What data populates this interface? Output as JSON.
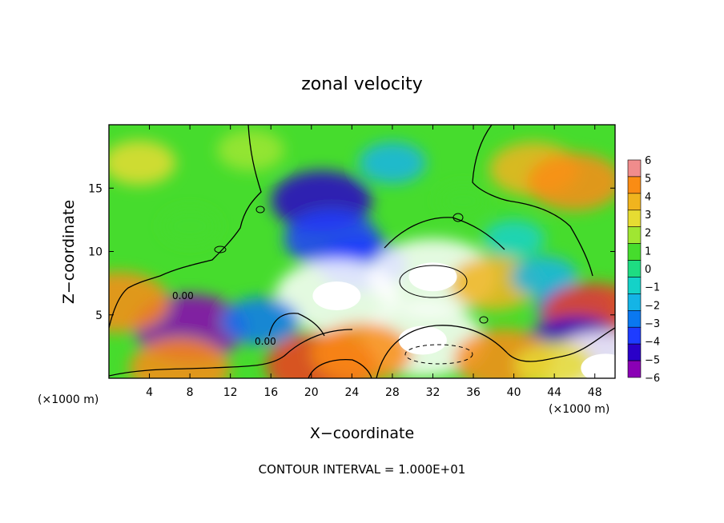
{
  "chart_data": {
    "type": "heatmap",
    "title": "zonal velocity",
    "xlabel": "X−coordinate",
    "ylabel": "Z−coordinate",
    "xunit_left": "(×1000 m)",
    "xunit_right": "(×1000 m)",
    "xlim": [
      0,
      50
    ],
    "ylim": [
      0,
      20
    ],
    "x_ticks": [
      4,
      8,
      12,
      16,
      20,
      24,
      28,
      32,
      36,
      40,
      44,
      48
    ],
    "x_tick_labels": [
      "4",
      "8",
      "12",
      "16",
      "20",
      "24",
      "28",
      "32",
      "36",
      "40",
      "44",
      "48"
    ],
    "y_ticks": [
      5,
      10,
      15
    ],
    "y_tick_labels": [
      "5",
      "10",
      "15"
    ],
    "colorbar": {
      "min": -6,
      "max": 6,
      "ticks": [
        6,
        5,
        4,
        3,
        2,
        1,
        0,
        -1,
        -2,
        -3,
        -4,
        -5,
        -6
      ],
      "tick_labels": [
        "6",
        "5",
        "4",
        "3",
        "2",
        "1",
        "0",
        "−1",
        "−2",
        "−3",
        "−4",
        "−5",
        "−6"
      ]
    },
    "contour_labels": [
      "0.00",
      "0.00"
    ],
    "footer": "CONTOUR INTERVAL = 1.000E+01",
    "features": [
      {
        "x": 42,
        "z": 16.5,
        "value": 4
      },
      {
        "x": 46,
        "z": 15.5,
        "value": 4.5
      },
      {
        "x": 3,
        "z": 17,
        "value": 2.5
      },
      {
        "x": 14,
        "z": 18,
        "value": 2
      },
      {
        "x": 8,
        "z": 12,
        "value": 1
      },
      {
        "x": 21,
        "z": 14,
        "value": -5
      },
      {
        "x": 22,
        "z": 11,
        "value": -4.5
      },
      {
        "x": 25,
        "z": 9,
        "value": -4
      },
      {
        "x": 28,
        "z": 17,
        "value": -2
      },
      {
        "x": 35,
        "z": 14,
        "value": 0.5
      },
      {
        "x": 22.5,
        "z": 6.5,
        "value": 7
      },
      {
        "x": 32,
        "z": 8,
        "value": 7.5
      },
      {
        "x": 31,
        "z": 3,
        "value": -7
      },
      {
        "x": 8,
        "z": 4,
        "value": -6
      },
      {
        "x": 15,
        "z": 4.5,
        "value": -3
      },
      {
        "x": 21,
        "z": 1,
        "value": 6
      },
      {
        "x": 25,
        "z": 2,
        "value": 5
      },
      {
        "x": 7,
        "z": 0.8,
        "value": 5
      },
      {
        "x": 1,
        "z": 6,
        "value": 5
      },
      {
        "x": 38,
        "z": 7.5,
        "value": 4
      },
      {
        "x": 43,
        "z": 8,
        "value": -2
      },
      {
        "x": 46,
        "z": 5.5,
        "value": -3
      },
      {
        "x": 48,
        "z": 5,
        "value": 5.5
      },
      {
        "x": 46,
        "z": 2.5,
        "value": -5
      },
      {
        "x": 49,
        "z": 0.8,
        "value": 7
      },
      {
        "x": 39,
        "z": 1.5,
        "value": 5
      },
      {
        "x": 40,
        "z": 11,
        "value": -1.5
      },
      {
        "x": 44,
        "z": 1,
        "value": 3
      }
    ]
  }
}
